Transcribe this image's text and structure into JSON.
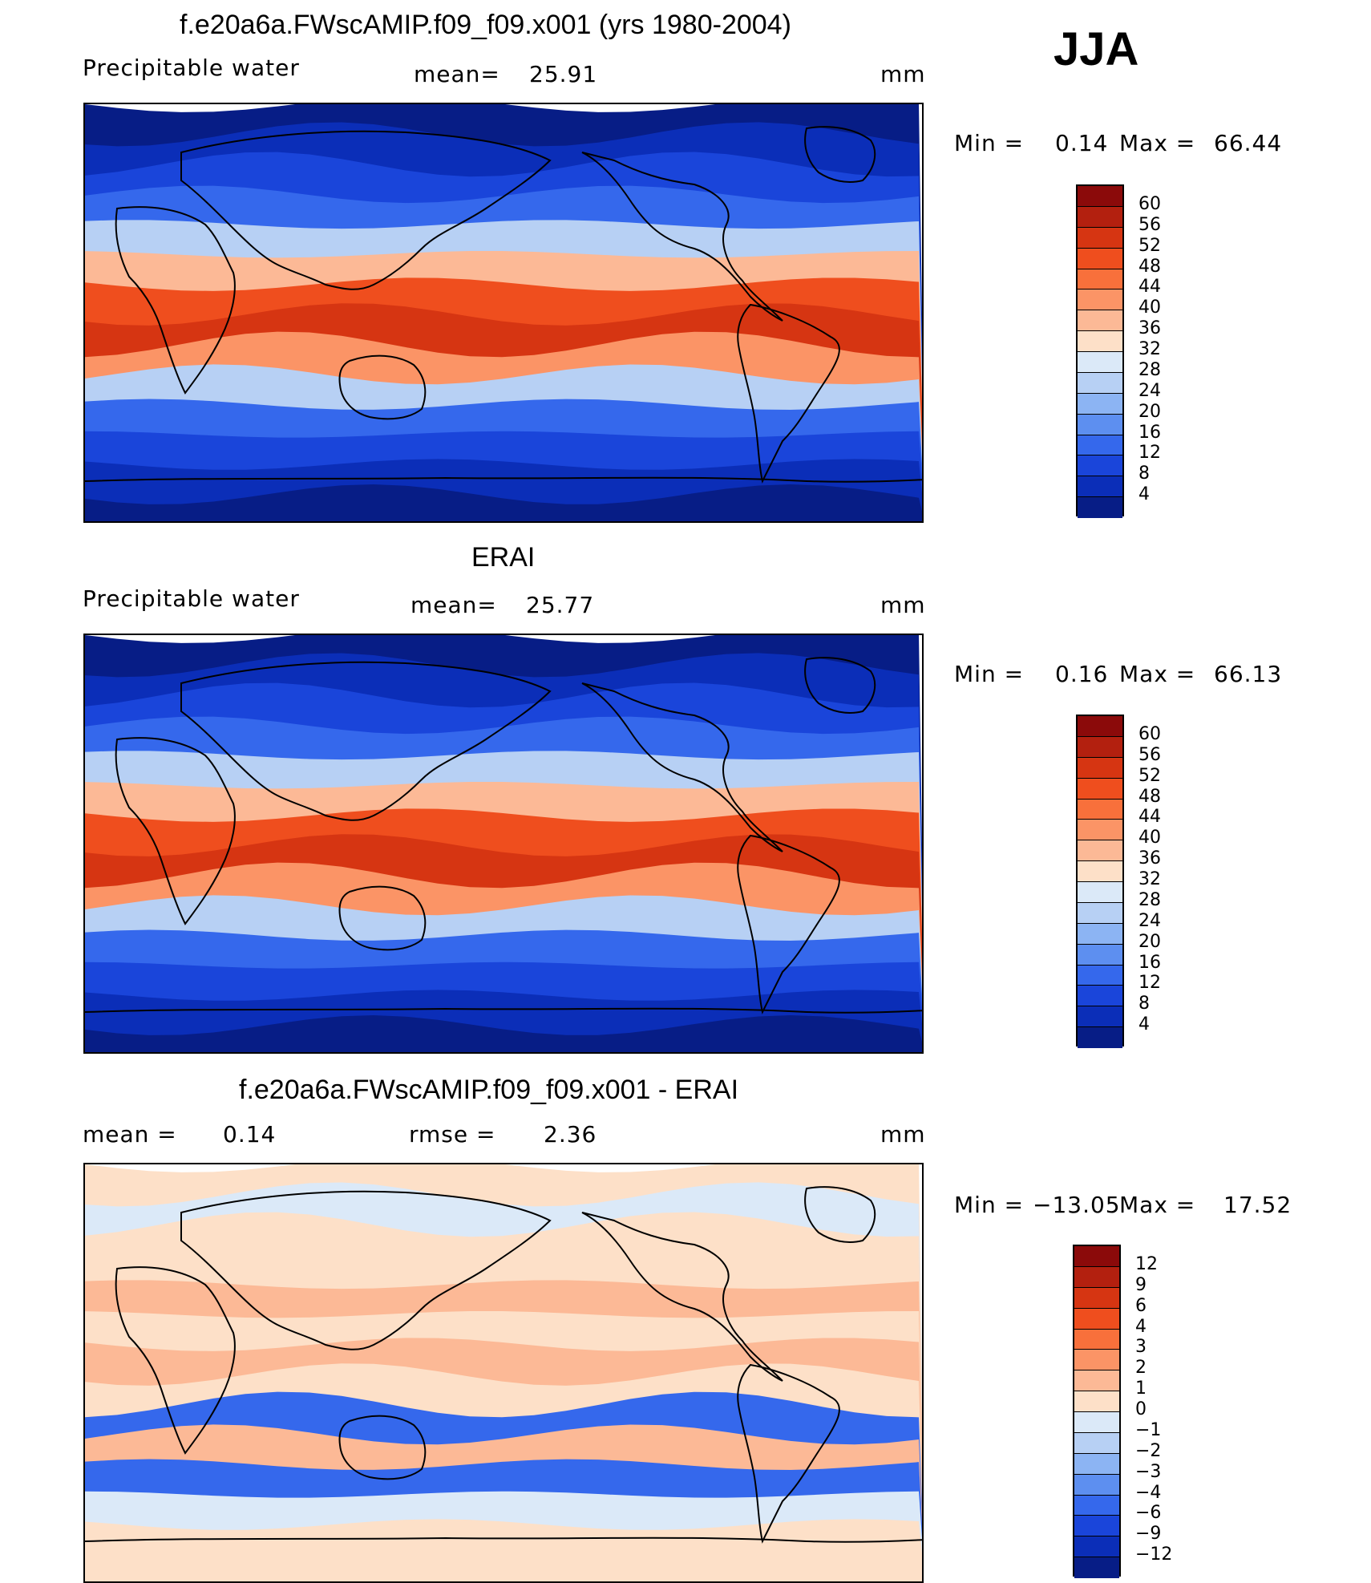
{
  "season": "JJA",
  "panels": [
    {
      "id": "model",
      "title": "f.e20a6a.FWscAMIP.f09_f09.x001 (yrs 1980-2004)",
      "left_label": "Precipitable  water",
      "stat_label": "mean=",
      "stat_value": "25.91",
      "stat2_label": "",
      "stat2_value": "",
      "units": "mm",
      "min_label": "Min  =",
      "min_value": "0.14",
      "max_label": "Max  =",
      "max_value": "66.44",
      "colorbar_levels": [
        "60",
        "56",
        "52",
        "48",
        "44",
        "40",
        "36",
        "32",
        "28",
        "24",
        "20",
        "16",
        "12",
        "8",
        "4"
      ],
      "colorbar_colors": [
        "#8b0a0a",
        "#b3200f",
        "#d63512",
        "#ef4e1e",
        "#f8703b",
        "#fb9466",
        "#fcb996",
        "#fde0c8",
        "#dbe9f8",
        "#b7d0f4",
        "#8cb4f3",
        "#5d8ff0",
        "#3568ec",
        "#1a45da",
        "#0b2eb8",
        "#071d86"
      ],
      "band_colors": [
        "#071d86",
        "#0b2eb8",
        "#1a45da",
        "#3568ec",
        "#b7d0f4",
        "#fcb996",
        "#ef4e1e",
        "#d63512",
        "#fb9466",
        "#b7d0f4",
        "#3568ec",
        "#1a45da",
        "#0b2eb8",
        "#071d86"
      ]
    },
    {
      "id": "obs",
      "title": "ERAI",
      "left_label": "Precipitable  water",
      "stat_label": "mean=",
      "stat_value": "25.77",
      "stat2_label": "",
      "stat2_value": "",
      "units": "mm",
      "min_label": "Min  =",
      "min_value": "0.16",
      "max_label": "Max  =",
      "max_value": "66.13",
      "colorbar_levels": [
        "60",
        "56",
        "52",
        "48",
        "44",
        "40",
        "36",
        "32",
        "28",
        "24",
        "20",
        "16",
        "12",
        "8",
        "4"
      ],
      "colorbar_colors": [
        "#8b0a0a",
        "#b3200f",
        "#d63512",
        "#ef4e1e",
        "#f8703b",
        "#fb9466",
        "#fcb996",
        "#fde0c8",
        "#dbe9f8",
        "#b7d0f4",
        "#8cb4f3",
        "#5d8ff0",
        "#3568ec",
        "#1a45da",
        "#0b2eb8",
        "#071d86"
      ],
      "band_colors": [
        "#071d86",
        "#0b2eb8",
        "#1a45da",
        "#3568ec",
        "#b7d0f4",
        "#fcb996",
        "#ef4e1e",
        "#d63512",
        "#fb9466",
        "#b7d0f4",
        "#3568ec",
        "#1a45da",
        "#0b2eb8",
        "#071d86"
      ]
    },
    {
      "id": "diff",
      "title": "f.e20a6a.FWscAMIP.f09_f09.x001 - ERAI",
      "left_label": "mean  =",
      "stat_label": "0.14",
      "stat_value": "",
      "stat2_label": "rmse  =",
      "stat2_value": "2.36",
      "units": "mm",
      "min_label": "Min  =",
      "min_value": "−13.05",
      "max_label": "Max  =",
      "max_value": "17.52",
      "colorbar_levels": [
        "12",
        "9",
        "6",
        "4",
        "3",
        "2",
        "1",
        "0",
        "−1",
        "−2",
        "−3",
        "−4",
        "−6",
        "−9",
        "−12"
      ],
      "colorbar_colors": [
        "#8b0a0a",
        "#b3200f",
        "#d63512",
        "#ef4e1e",
        "#f8703b",
        "#fb9466",
        "#fcb996",
        "#fde0c8",
        "#dbe9f8",
        "#b7d0f4",
        "#8cb4f3",
        "#5d8ff0",
        "#3568ec",
        "#1a45da",
        "#0b2eb8",
        "#071d86"
      ],
      "band_colors": [
        "#fde0c8",
        "#dbe9f8",
        "#fde0c8",
        "#fde0c8",
        "#fcb996",
        "#fde0c8",
        "#fcb996",
        "#fde0c8",
        "#3568ec",
        "#fcb996",
        "#3568ec",
        "#dbe9f8",
        "#fde0c8",
        "#fde0c8"
      ]
    }
  ]
}
